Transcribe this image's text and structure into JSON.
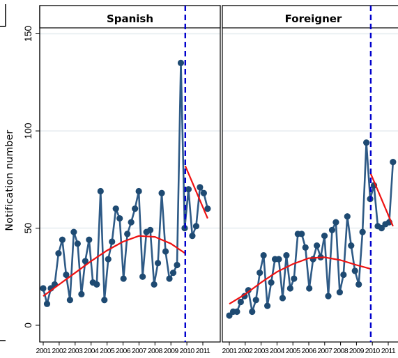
{
  "chart_data": {
    "type": "line",
    "ylabel": "Notification number",
    "ylim": [
      0,
      155
    ],
    "yticks": [
      0,
      50,
      100,
      150
    ],
    "xticks": [
      "2001",
      "2002",
      "2003",
      "2004",
      "2005",
      "2006",
      "2007",
      "2008",
      "2009",
      "2010",
      "2011"
    ],
    "break_at": "2010",
    "grid": "horizontal",
    "panels": [
      {
        "title": "Spanish",
        "series": [
          {
            "values": [
              19,
              11,
              19,
              21,
              37,
              44,
              26,
              13,
              48,
              42,
              16,
              33,
              44,
              22,
              21,
              69,
              13,
              34,
              43,
              60,
              55,
              24,
              47,
              53,
              60,
              69,
              25,
              48,
              49,
              21,
              32,
              68,
              38,
              24,
              27,
              31,
              135,
              50,
              70,
              46,
              51,
              71,
              68,
              60
            ]
          }
        ],
        "trend_pre": [
          [
            2001.0,
            15
          ],
          [
            2002.0,
            21
          ],
          [
            2003.0,
            27
          ],
          [
            2004.0,
            33
          ],
          [
            2005.0,
            38.5
          ],
          [
            2006.0,
            43
          ],
          [
            2007.0,
            46
          ],
          [
            2008.0,
            45.5
          ],
          [
            2009.0,
            42
          ],
          [
            2009.9,
            37
          ]
        ],
        "trend_post": [
          [
            2009.9,
            82
          ],
          [
            2011.3,
            55
          ]
        ]
      },
      {
        "title": "Foreigner",
        "series": [
          {
            "values": [
              5,
              7,
              7,
              12,
              15,
              18,
              7,
              13,
              27,
              36,
              10,
              22,
              34,
              34,
              14,
              36,
              19,
              24,
              47,
              47,
              40,
              19,
              34,
              41,
              35,
              46,
              15,
              49,
              53,
              17,
              26,
              56,
              41,
              28,
              21,
              48,
              94,
              65,
              72,
              51,
              50,
              52,
              53,
              84
            ]
          }
        ],
        "trend_pre": [
          [
            2001.0,
            11
          ],
          [
            2002.0,
            16
          ],
          [
            2003.0,
            22
          ],
          [
            2004.0,
            27.5
          ],
          [
            2005.0,
            31.5
          ],
          [
            2006.0,
            34.5
          ],
          [
            2007.0,
            35
          ],
          [
            2008.0,
            33.5
          ],
          [
            2009.0,
            31
          ],
          [
            2009.9,
            29
          ]
        ],
        "trend_post": [
          [
            2009.9,
            78
          ],
          [
            2011.3,
            51
          ]
        ]
      }
    ]
  },
  "colors": {
    "line": "#2e5a86",
    "marker": "#1e4a72",
    "trend": "#ee1111",
    "break": "#0000cc",
    "grid": "#e6ecf0",
    "strip_bg": "#ffffff"
  }
}
